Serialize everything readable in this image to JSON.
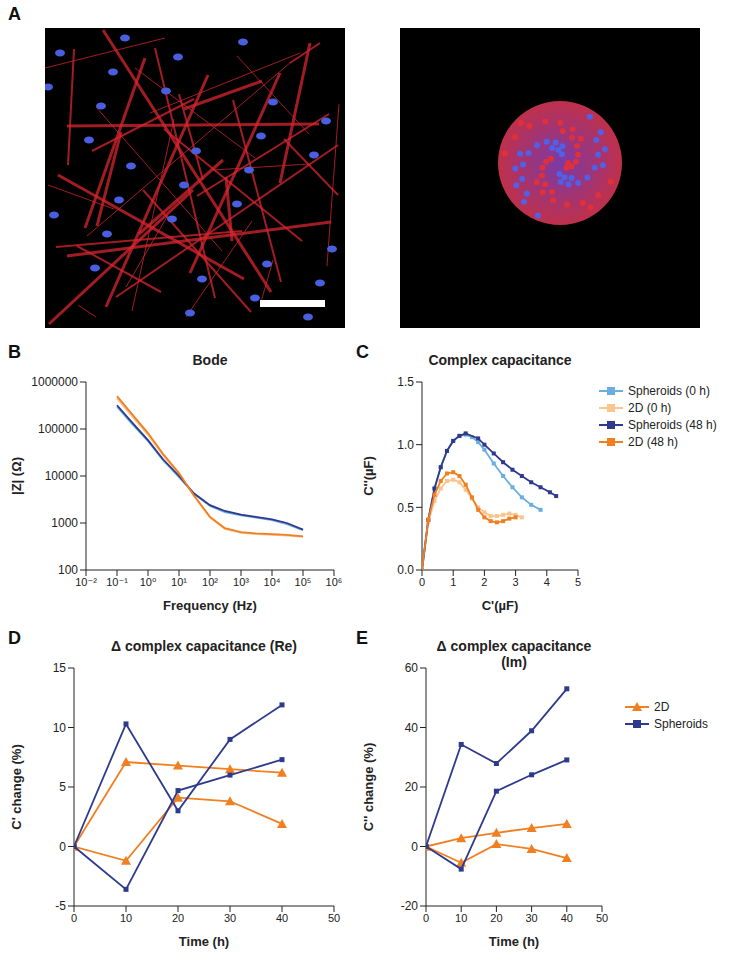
{
  "image_panel": {
    "label": "A"
  },
  "chart_data": [
    {
      "panel": "B",
      "type": "line",
      "title": "Bode",
      "x_label": "Frequency (Hz)",
      "y_label": "|Z| (Ω)",
      "log": true,
      "grid": false,
      "marker": "none",
      "x": [
        0.1,
        0.3,
        1,
        3,
        10,
        30,
        100,
        300,
        1000,
        3000,
        10000,
        30000,
        100000
      ],
      "xlim": [
        0.01,
        1000000
      ],
      "xticks": [
        {
          "value": 0.01,
          "label": "10⁻²"
        },
        {
          "value": 0.1,
          "label": "10⁻¹"
        },
        {
          "value": 1,
          "label": "10⁰"
        },
        {
          "value": 10,
          "label": "10¹"
        },
        {
          "value": 100,
          "label": "10²"
        },
        {
          "value": 1000,
          "label": "10³"
        },
        {
          "value": 10000,
          "label": "10⁴"
        },
        {
          "value": 100000,
          "label": "10⁵"
        },
        {
          "value": 1000000,
          "label": "10⁶"
        }
      ],
      "ylim": [
        100,
        1000000
      ],
      "yticks": [
        100,
        1000,
        10000,
        100000,
        1000000
      ],
      "series": [
        {
          "name": "Spheroids (0 h)",
          "color": "#6aaee0",
          "values": [
            300000,
            130000,
            55000,
            22000,
            9500,
            4200,
            2300,
            1700,
            1450,
            1300,
            1150,
            950,
            700
          ]
        },
        {
          "name": "2D (0 h)",
          "color": "#f9c48d",
          "values": [
            450000,
            190000,
            75000,
            28000,
            11000,
            3800,
            1300,
            750,
            620,
            580,
            560,
            540,
            510
          ]
        },
        {
          "name": "Spheroids (48 h)",
          "color": "#2e3a8c",
          "values": [
            320000,
            140000,
            58000,
            23000,
            10000,
            4300,
            2400,
            1800,
            1500,
            1350,
            1200,
            1000,
            720
          ]
        },
        {
          "name": "2D (48 h)",
          "color": "#f07f22",
          "values": [
            500000,
            210000,
            82000,
            30000,
            11500,
            3900,
            1350,
            780,
            640,
            600,
            580,
            560,
            520
          ]
        }
      ]
    },
    {
      "panel": "C",
      "type": "line",
      "title": "Complex capacitance",
      "x_label": "C'(µF)",
      "y_label": "C''(µF)",
      "grid": false,
      "marker": "square",
      "legend": "right",
      "xlim": [
        0,
        5
      ],
      "xticks": [
        0,
        1,
        2,
        3,
        4,
        5
      ],
      "ylim": [
        0,
        1.5
      ],
      "yticks": [
        {
          "value": 0,
          "label": "0.0"
        },
        {
          "value": 0.5,
          "label": "0.5"
        },
        {
          "value": 1,
          "label": "1.0"
        },
        {
          "value": 1.5,
          "label": "1.5"
        }
      ],
      "series": [
        {
          "name": "Spheroids (0 h)",
          "color": "#6aaee0",
          "x": [
            0,
            0.2,
            0.4,
            0.6,
            0.8,
            1.0,
            1.2,
            1.4,
            1.6,
            1.8,
            2.0,
            2.3,
            2.6,
            2.9,
            3.2,
            3.5,
            3.8
          ],
          "values": [
            0,
            0.4,
            0.65,
            0.82,
            0.95,
            1.03,
            1.07,
            1.08,
            1.06,
            1.02,
            0.96,
            0.85,
            0.75,
            0.66,
            0.58,
            0.52,
            0.48
          ]
        },
        {
          "name": "2D (0 h)",
          "color": "#f9c48d",
          "x": [
            0,
            0.2,
            0.4,
            0.6,
            0.8,
            1.0,
            1.2,
            1.4,
            1.6,
            1.8,
            2.0,
            2.2,
            2.4,
            2.6,
            2.8,
            3.0,
            3.2
          ],
          "values": [
            0,
            0.38,
            0.55,
            0.65,
            0.71,
            0.72,
            0.7,
            0.64,
            0.57,
            0.5,
            0.46,
            0.43,
            0.43,
            0.44,
            0.45,
            0.44,
            0.42
          ]
        },
        {
          "name": "Spheroids (48 h)",
          "color": "#2e3a8c",
          "x": [
            0,
            0.2,
            0.4,
            0.6,
            0.8,
            1.0,
            1.2,
            1.4,
            1.8,
            2.0,
            2.3,
            2.6,
            2.9,
            3.2,
            3.5,
            3.8,
            4.1,
            4.3
          ],
          "values": [
            0,
            0.4,
            0.65,
            0.82,
            0.95,
            1.03,
            1.07,
            1.09,
            1.05,
            1.0,
            0.93,
            0.86,
            0.8,
            0.75,
            0.7,
            0.66,
            0.62,
            0.59
          ]
        },
        {
          "name": "2D (48 h)",
          "color": "#f07f22",
          "x": [
            0,
            0.2,
            0.4,
            0.6,
            0.8,
            1.0,
            1.2,
            1.4,
            1.6,
            1.8,
            2.0,
            2.2,
            2.4,
            2.6,
            2.8,
            3.0
          ],
          "values": [
            0,
            0.4,
            0.6,
            0.71,
            0.77,
            0.78,
            0.75,
            0.68,
            0.58,
            0.48,
            0.42,
            0.39,
            0.38,
            0.39,
            0.41,
            0.42
          ]
        }
      ]
    },
    {
      "panel": "D",
      "type": "line",
      "title": "Δ complex capacitance (Re)",
      "x_label": "Time (h)",
      "y_label": "C' change (%)",
      "grid": false,
      "x": [
        0,
        10,
        20,
        30,
        40
      ],
      "xlim": [
        0,
        50
      ],
      "xticks": [
        0,
        10,
        20,
        30,
        40,
        50
      ],
      "ylim": [
        -5,
        15
      ],
      "yticks": [
        -5,
        0,
        5,
        10,
        15
      ],
      "series": [
        {
          "name": "2D",
          "color": "#f07f22",
          "marker": "triangle",
          "values": [
            [
              0,
              7.1,
              6.8,
              6.5,
              6.2
            ],
            [
              0,
              -1.2,
              4.1,
              3.8,
              1.9
            ]
          ]
        },
        {
          "name": "Spheroids",
          "color": "#2e3a8c",
          "marker": "square",
          "values": [
            [
              0,
              10.3,
              3.0,
              9.0,
              11.9
            ],
            [
              0,
              -3.6,
              4.7,
              6.0,
              7.3
            ]
          ]
        }
      ]
    },
    {
      "panel": "E",
      "type": "line",
      "title": "Δ complex capacitance (Im)",
      "x_label": "Time (h)",
      "y_label": "C'' change (%)",
      "grid": false,
      "legend": "right",
      "x": [
        0,
        10,
        20,
        30,
        40
      ],
      "xlim": [
        0,
        50
      ],
      "xticks": [
        0,
        10,
        20,
        30,
        40,
        50
      ],
      "ylim": [
        -20,
        60
      ],
      "yticks": [
        -20,
        0,
        20,
        40,
        60
      ],
      "series": [
        {
          "name": "2D",
          "color": "#f07f22",
          "marker": "triangle",
          "values": [
            [
              0,
              2.8,
              4.6,
              6.2,
              7.6
            ],
            [
              0,
              -5.5,
              0.8,
              -0.8,
              -3.9
            ]
          ]
        },
        {
          "name": "Spheroids",
          "color": "#2e3a8c",
          "marker": "square",
          "values": [
            [
              0,
              34.3,
              27.9,
              38.9,
              53.0
            ],
            [
              0,
              -7.6,
              18.6,
              24.1,
              29.1
            ]
          ]
        }
      ]
    }
  ]
}
